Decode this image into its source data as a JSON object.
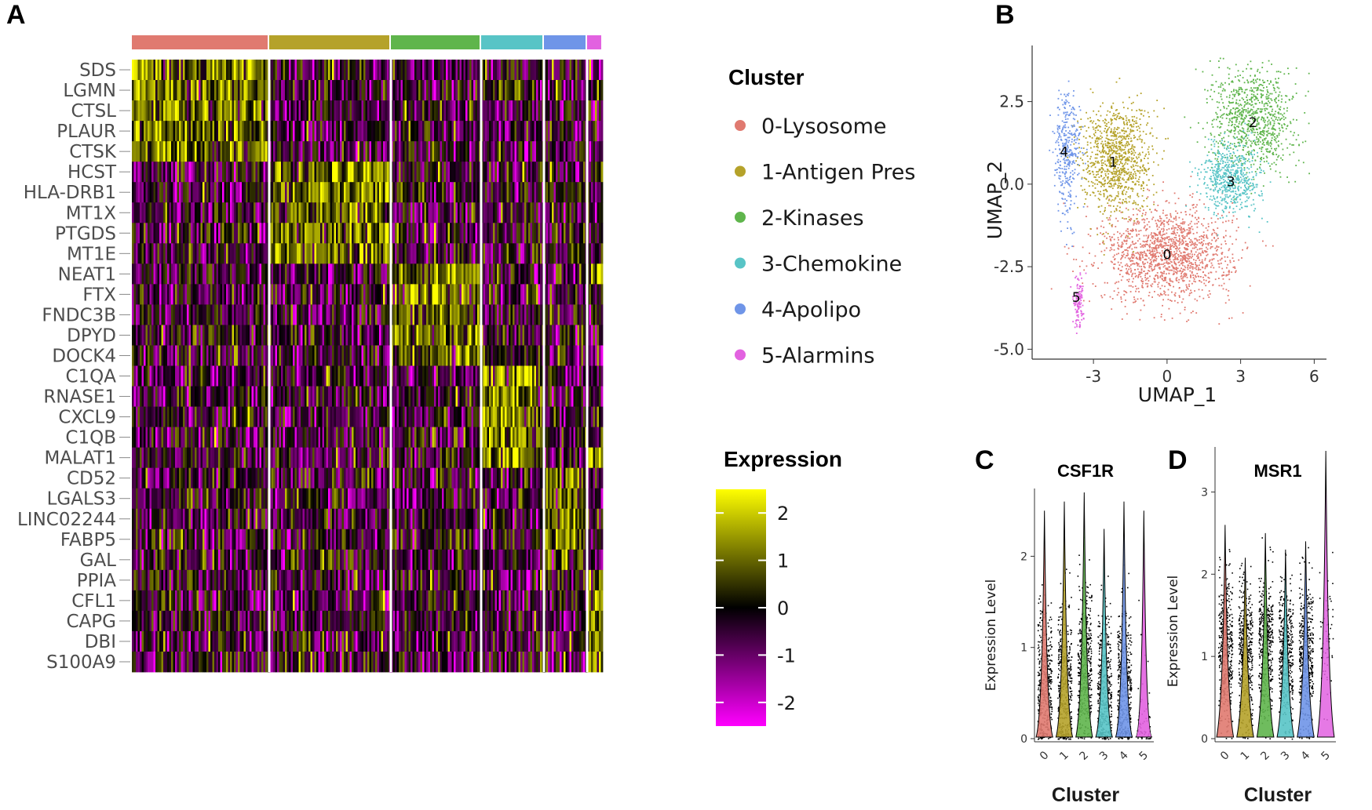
{
  "panels": {
    "a": "A",
    "b": "B",
    "c": "C",
    "d": "D"
  },
  "colors": {
    "0": "#E07A70",
    "1": "#B5A22A",
    "2": "#5FB54C",
    "3": "#58C4C6",
    "4": "#6F95E8",
    "5": "#E262E0",
    "low": "#FF00FF",
    "mid": "#000000",
    "high": "#FFFF00"
  },
  "chart_data": [
    {
      "type": "heatmap",
      "panel": "A",
      "genes": [
        "SDS",
        "LGMN",
        "CTSL",
        "PLAUR",
        "CTSK",
        "HCST",
        "HLA-DRB1",
        "MT1X",
        "PTGDS",
        "MT1E",
        "NEAT1",
        "FTX",
        "FNDC3B",
        "DPYD",
        "DOCK4",
        "C1QA",
        "RNASE1",
        "CXCL9",
        "C1QB",
        "MALAT1",
        "CD52",
        "LGALS3",
        "LINC02244",
        "FABP5",
        "GAL",
        "PPIA",
        "CFL1",
        "CAPG",
        "DBI",
        "S100A9"
      ],
      "cluster_order": [
        "0",
        "1",
        "2",
        "3",
        "4",
        "5"
      ],
      "cluster_proportions": [
        0.29,
        0.26,
        0.19,
        0.135,
        0.09,
        0.035
      ],
      "legend_title": "Cluster",
      "legend": [
        {
          "id": "0",
          "label": "0-Lysosome"
        },
        {
          "id": "1",
          "label": "1-Antigen Pres"
        },
        {
          "id": "2",
          "label": "2-Kinases"
        },
        {
          "id": "3",
          "label": "3-Chemokine"
        },
        {
          "id": "4",
          "label": "4-Apolipo"
        },
        {
          "id": "5",
          "label": "5-Alarmins"
        }
      ],
      "colorbar_title": "Expression",
      "colorbar_ticks": [
        "2",
        "1",
        "0",
        "-1",
        "-2"
      ],
      "color_range": [
        -2.5,
        2.5
      ],
      "gene_markers": {
        "0": [
          "SDS",
          "LGMN",
          "CTSL",
          "PLAUR",
          "CTSK"
        ],
        "1": [
          "HCST",
          "HLA-DRB1",
          "MT1X",
          "PTGDS",
          "MT1E"
        ],
        "2": [
          "NEAT1",
          "FTX",
          "FNDC3B",
          "DPYD",
          "DOCK4"
        ],
        "3": [
          "C1QA",
          "RNASE1",
          "CXCL9",
          "C1QB",
          "MALAT1"
        ],
        "4": [
          "CD52",
          "LGALS3",
          "LINC02244",
          "FABP5",
          "GAL"
        ],
        "5": [
          "PPIA",
          "CFL1",
          "CAPG",
          "DBI",
          "S100A9"
        ]
      }
    },
    {
      "type": "scatter",
      "panel": "B",
      "xlabel": "UMAP_1",
      "ylabel": "UMAP_2",
      "xlim": [
        -5.5,
        6.5
      ],
      "ylim": [
        -5.3,
        4.2
      ],
      "xticks": [
        "-3",
        "0",
        "3",
        "6"
      ],
      "yticks": [
        "2.5",
        "0.0",
        "-2.5",
        "-5.0"
      ],
      "cluster_centers": [
        {
          "id": "0",
          "x": 0.0,
          "y": -2.1,
          "label": "0"
        },
        {
          "id": "1",
          "x": -2.2,
          "y": 0.7,
          "label": "1"
        },
        {
          "id": "2",
          "x": 3.5,
          "y": 1.9,
          "label": "2"
        },
        {
          "id": "3",
          "x": 2.6,
          "y": 0.1,
          "label": "3"
        },
        {
          "id": "4",
          "x": -4.2,
          "y": 1.0,
          "label": "4"
        },
        {
          "id": "5",
          "x": -3.7,
          "y": -3.4,
          "label": "5"
        }
      ]
    },
    {
      "type": "violin",
      "panel": "C",
      "title": "CSF1R",
      "xlabel": "Cluster",
      "ylabel": "Expression Level",
      "categories": [
        "0",
        "1",
        "2",
        "3",
        "4",
        "5"
      ],
      "ylim": [
        0,
        2.7
      ],
      "yticks": [
        "0",
        "1",
        "2"
      ],
      "max_values": [
        2.5,
        2.6,
        2.7,
        2.3,
        2.6,
        2.5
      ],
      "median_values": [
        0.6,
        0.6,
        0.8,
        0.5,
        0.5,
        0.0
      ]
    },
    {
      "type": "violin",
      "panel": "D",
      "title": "MSR1",
      "xlabel": "Cluster",
      "ylabel": "Expression Level",
      "categories": [
        "0",
        "1",
        "2",
        "3",
        "4",
        "5"
      ],
      "ylim": [
        0,
        3.5
      ],
      "yticks": [
        "0",
        "1",
        "2",
        "3"
      ],
      "max_values": [
        2.6,
        2.2,
        2.5,
        2.3,
        2.4,
        3.5
      ],
      "median_values": [
        1.1,
        1.0,
        1.1,
        1.0,
        1.0,
        1.3
      ]
    }
  ]
}
